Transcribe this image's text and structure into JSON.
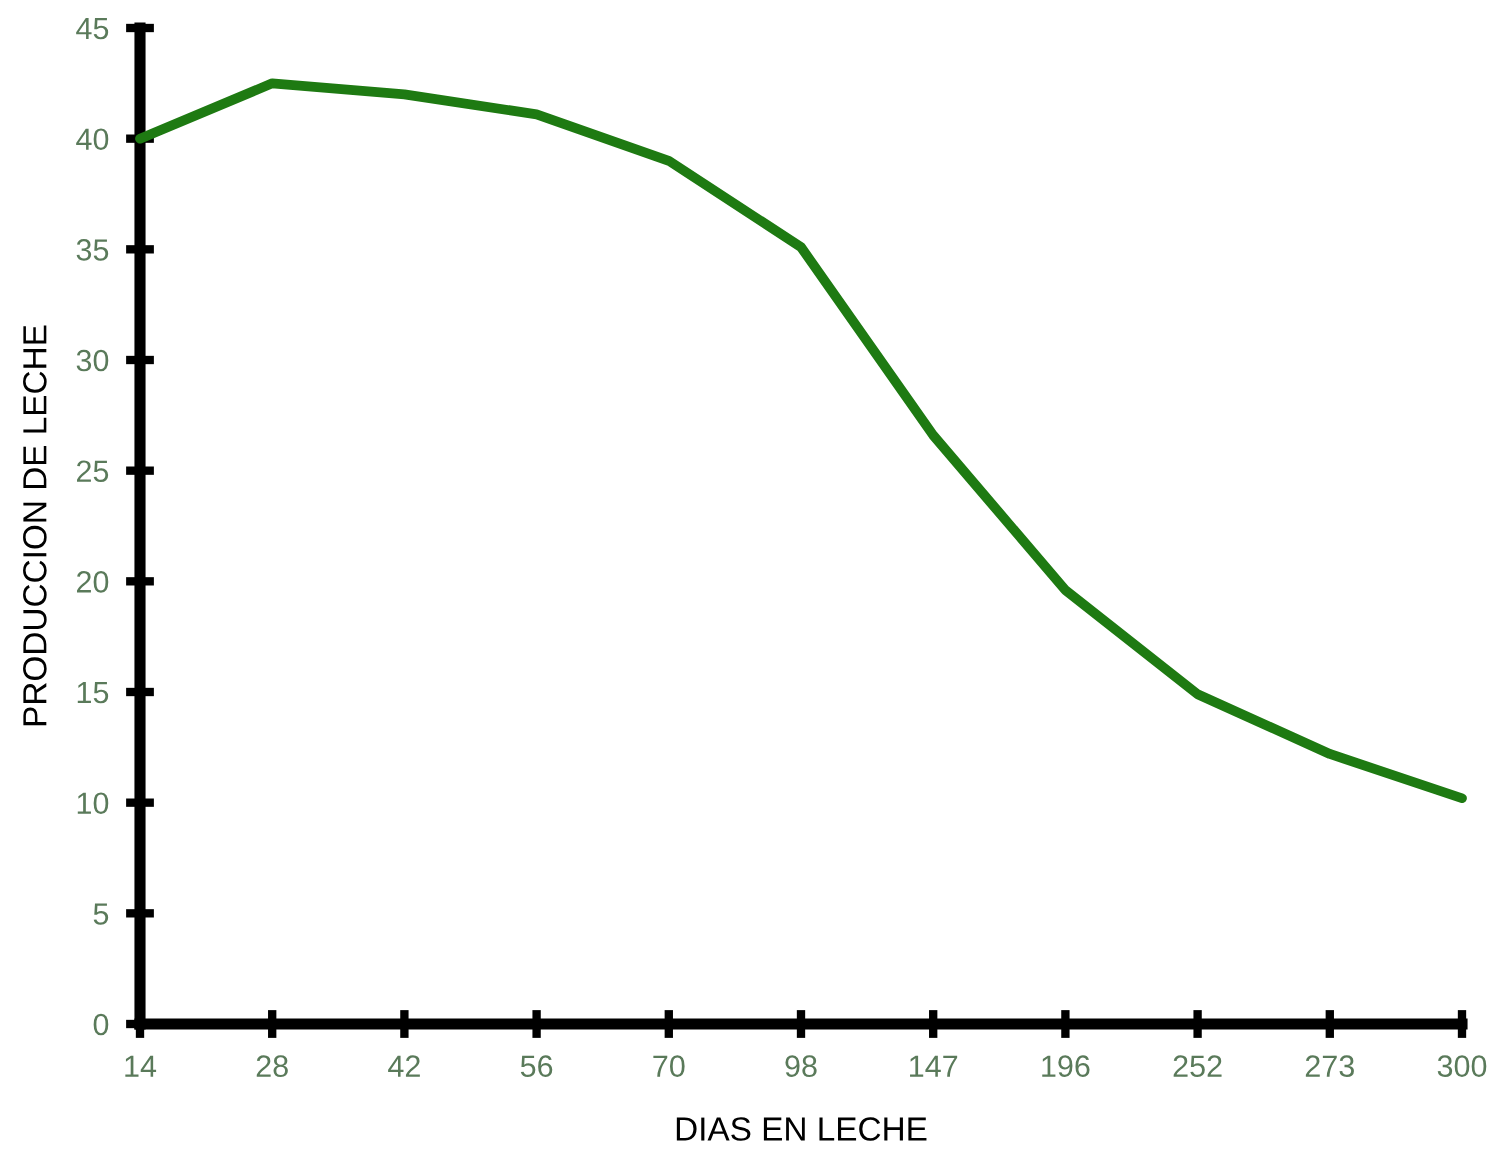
{
  "chart_data": {
    "type": "line",
    "xlabel": "DIAS EN LECHE",
    "ylabel": "PRODUCCION DE LECHE",
    "categories": [
      "14",
      "28",
      "42",
      "56",
      "70",
      "98",
      "147",
      "196",
      "252",
      "273",
      "300"
    ],
    "series": [
      {
        "color": "#1e7a12",
        "values": [
          40,
          42.5,
          42,
          41.1,
          39,
          35.1,
          26.6,
          19.6,
          14.9,
          12.2,
          10.2
        ]
      }
    ],
    "ylim": [
      0,
      45
    ],
    "yticks": [
      0,
      5,
      10,
      15,
      20,
      25,
      30,
      35,
      40,
      45
    ],
    "grid": false,
    "legend": false,
    "marker": "none",
    "line_style": "solid"
  }
}
